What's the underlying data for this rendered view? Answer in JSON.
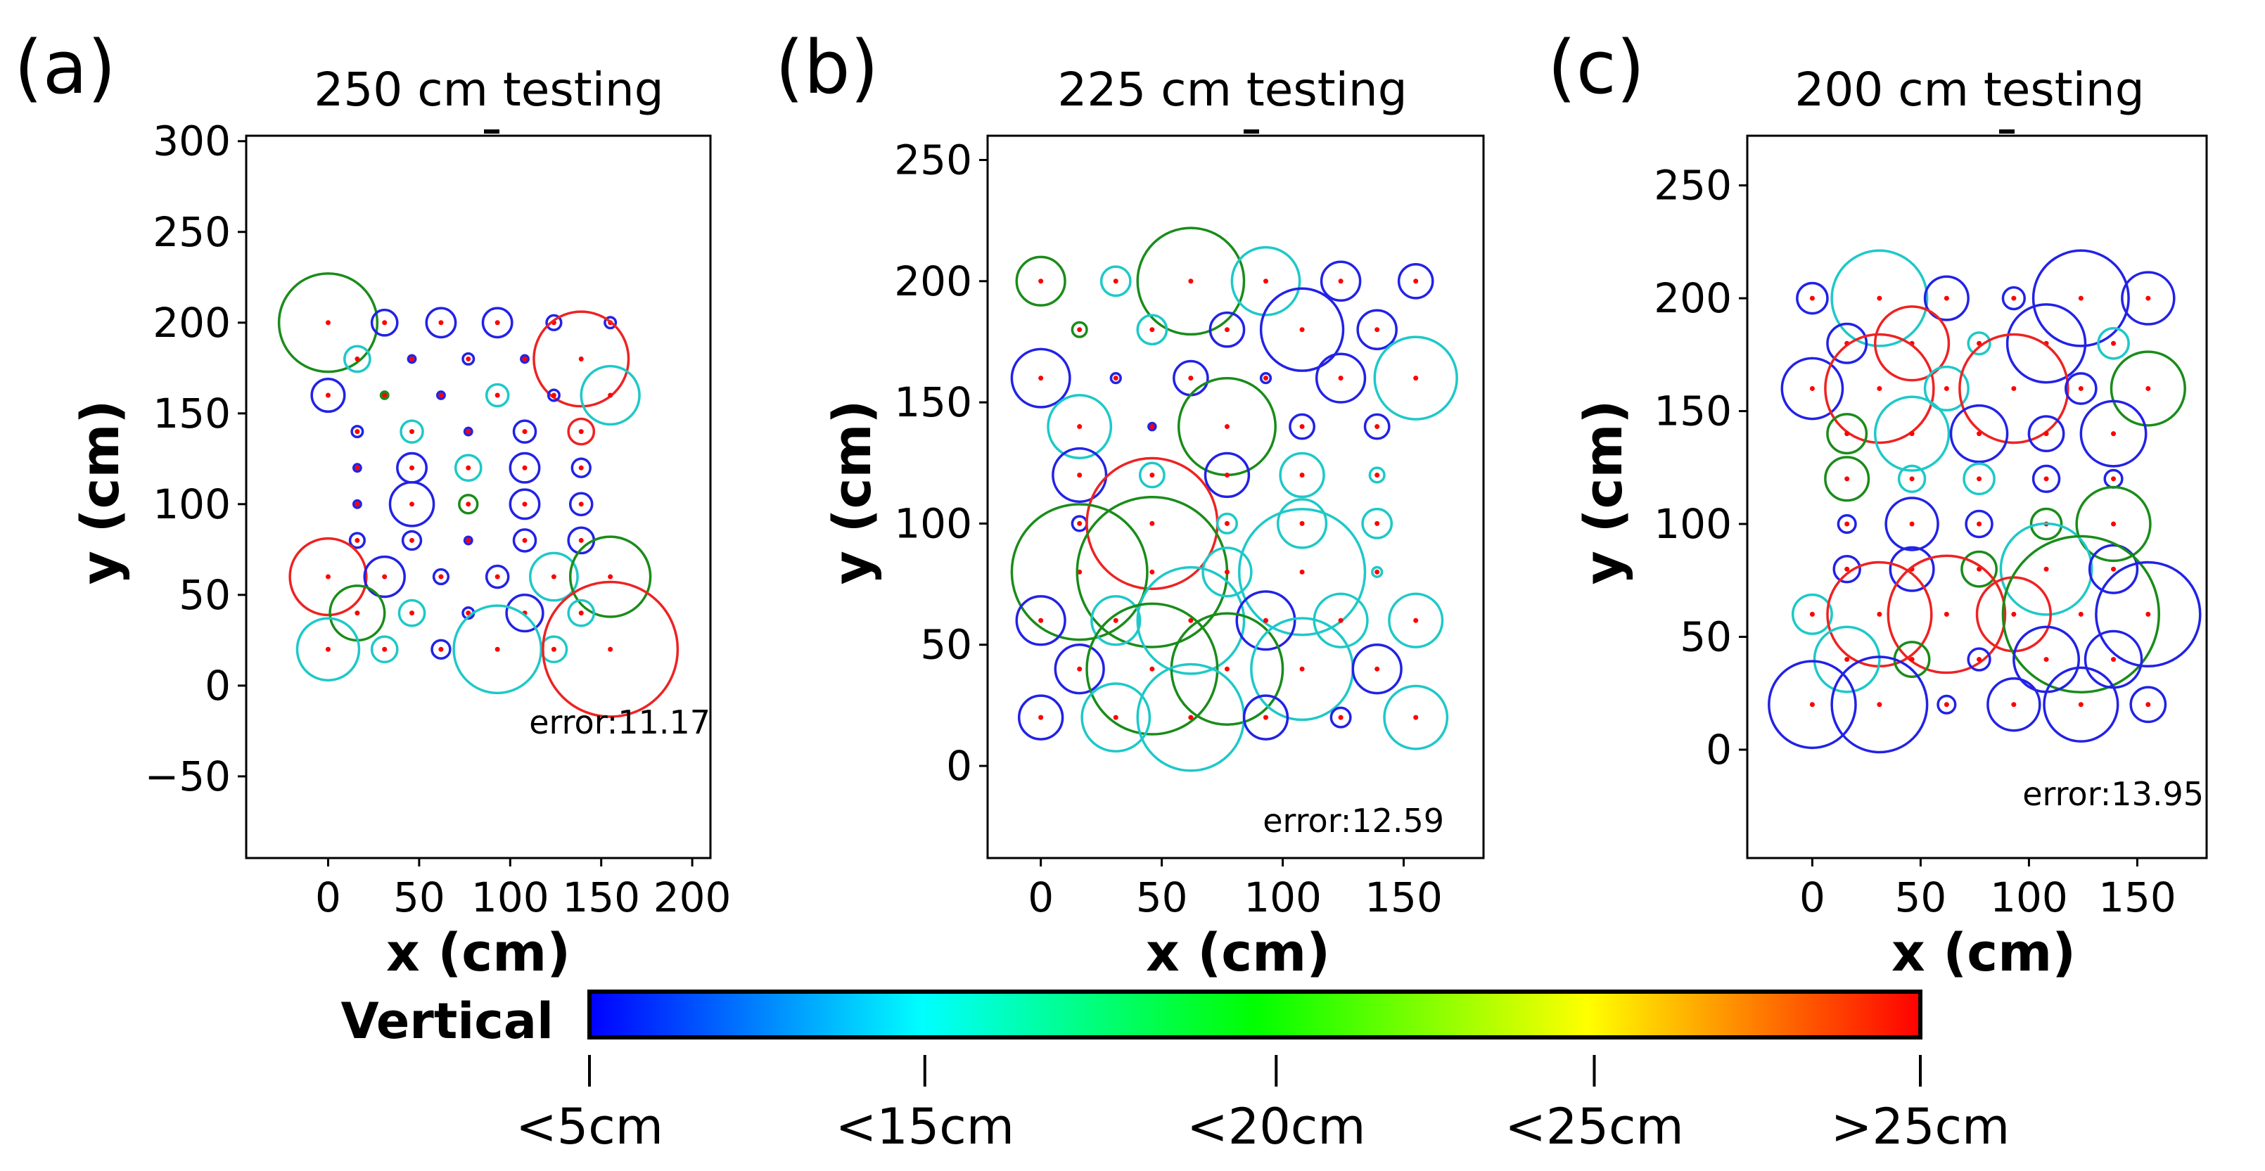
{
  "chart_data": [
    {
      "panel_label": "(a)",
      "title": "250 cm testing",
      "type": "scatter",
      "xlabel": "x (cm)",
      "ylabel": "y (cm)",
      "xlim": [
        -45,
        210
      ],
      "ylim": [
        -95,
        303
      ],
      "xticks": [
        0,
        50,
        100,
        150,
        200
      ],
      "xtick_labels": [
        "0",
        "50",
        "100",
        "150",
        "200"
      ],
      "yticks": [
        -50,
        0,
        50,
        100,
        150,
        200,
        250,
        300
      ],
      "ytick_labels": [
        "−50",
        "0",
        "50",
        "100",
        "150",
        "200",
        "250",
        "300"
      ],
      "error_text": "error:11.17",
      "points": [
        {
          "x": 0,
          "y": 200,
          "r": 27,
          "color": "green"
        },
        {
          "x": 31,
          "y": 200,
          "r": 7,
          "color": "blue"
        },
        {
          "x": 62,
          "y": 200,
          "r": 8,
          "color": "blue"
        },
        {
          "x": 93,
          "y": 200,
          "r": 8,
          "color": "blue"
        },
        {
          "x": 124,
          "y": 200,
          "r": 4,
          "color": "blue"
        },
        {
          "x": 155,
          "y": 200,
          "r": 3,
          "color": "blue"
        },
        {
          "x": 16,
          "y": 180,
          "r": 7,
          "color": "cyan"
        },
        {
          "x": 46,
          "y": 180,
          "r": 2,
          "color": "blue"
        },
        {
          "x": 77,
          "y": 180,
          "r": 3,
          "color": "blue"
        },
        {
          "x": 108,
          "y": 180,
          "r": 2,
          "color": "blue"
        },
        {
          "x": 139,
          "y": 180,
          "r": 26,
          "color": "red"
        },
        {
          "x": 0,
          "y": 160,
          "r": 9,
          "color": "blue"
        },
        {
          "x": 31,
          "y": 160,
          "r": 2,
          "color": "green"
        },
        {
          "x": 62,
          "y": 160,
          "r": 2,
          "color": "blue"
        },
        {
          "x": 93,
          "y": 160,
          "r": 6,
          "color": "cyan"
        },
        {
          "x": 124,
          "y": 160,
          "r": 3,
          "color": "blue"
        },
        {
          "x": 155,
          "y": 160,
          "r": 16,
          "color": "cyan"
        },
        {
          "x": 16,
          "y": 140,
          "r": 3,
          "color": "blue"
        },
        {
          "x": 46,
          "y": 140,
          "r": 6,
          "color": "cyan"
        },
        {
          "x": 77,
          "y": 140,
          "r": 2,
          "color": "blue"
        },
        {
          "x": 108,
          "y": 140,
          "r": 6,
          "color": "blue"
        },
        {
          "x": 139,
          "y": 140,
          "r": 7,
          "color": "red"
        },
        {
          "x": 16,
          "y": 120,
          "r": 2,
          "color": "blue"
        },
        {
          "x": 46,
          "y": 120,
          "r": 8,
          "color": "blue"
        },
        {
          "x": 77,
          "y": 120,
          "r": 7,
          "color": "cyan"
        },
        {
          "x": 108,
          "y": 120,
          "r": 8,
          "color": "blue"
        },
        {
          "x": 139,
          "y": 120,
          "r": 5,
          "color": "blue"
        },
        {
          "x": 16,
          "y": 100,
          "r": 2,
          "color": "blue"
        },
        {
          "x": 46,
          "y": 100,
          "r": 12,
          "color": "blue"
        },
        {
          "x": 77,
          "y": 100,
          "r": 5,
          "color": "green"
        },
        {
          "x": 108,
          "y": 100,
          "r": 8,
          "color": "blue"
        },
        {
          "x": 139,
          "y": 100,
          "r": 6,
          "color": "blue"
        },
        {
          "x": 16,
          "y": 80,
          "r": 4,
          "color": "blue"
        },
        {
          "x": 46,
          "y": 80,
          "r": 5,
          "color": "blue"
        },
        {
          "x": 77,
          "y": 80,
          "r": 2,
          "color": "blue"
        },
        {
          "x": 108,
          "y": 80,
          "r": 6,
          "color": "blue"
        },
        {
          "x": 139,
          "y": 80,
          "r": 7,
          "color": "blue"
        },
        {
          "x": 0,
          "y": 60,
          "r": 21,
          "color": "red"
        },
        {
          "x": 31,
          "y": 60,
          "r": 11,
          "color": "blue"
        },
        {
          "x": 62,
          "y": 60,
          "r": 4,
          "color": "blue"
        },
        {
          "x": 93,
          "y": 60,
          "r": 6,
          "color": "blue"
        },
        {
          "x": 124,
          "y": 60,
          "r": 13,
          "color": "cyan"
        },
        {
          "x": 155,
          "y": 60,
          "r": 22,
          "color": "green"
        },
        {
          "x": 16,
          "y": 40,
          "r": 15,
          "color": "green"
        },
        {
          "x": 46,
          "y": 40,
          "r": 7,
          "color": "cyan"
        },
        {
          "x": 77,
          "y": 40,
          "r": 3,
          "color": "blue"
        },
        {
          "x": 108,
          "y": 40,
          "r": 10,
          "color": "blue"
        },
        {
          "x": 139,
          "y": 40,
          "r": 7,
          "color": "cyan"
        },
        {
          "x": 0,
          "y": 20,
          "r": 17,
          "color": "cyan"
        },
        {
          "x": 31,
          "y": 20,
          "r": 7,
          "color": "cyan"
        },
        {
          "x": 62,
          "y": 20,
          "r": 5,
          "color": "blue"
        },
        {
          "x": 93,
          "y": 20,
          "r": 24,
          "color": "cyan"
        },
        {
          "x": 124,
          "y": 20,
          "r": 7,
          "color": "cyan"
        },
        {
          "x": 155,
          "y": 20,
          "r": 37,
          "color": "red"
        }
      ]
    },
    {
      "panel_label": "(b)",
      "title": "225 cm testing",
      "type": "scatter",
      "xlabel": "x (cm)",
      "ylabel": "y (cm)",
      "xlim": [
        -22,
        183
      ],
      "ylim": [
        -38,
        260
      ],
      "xticks": [
        0,
        50,
        100,
        150
      ],
      "xtick_labels": [
        "0",
        "50",
        "100",
        "150"
      ],
      "yticks": [
        0,
        50,
        100,
        150,
        200,
        250
      ],
      "ytick_labels": [
        "0",
        "50",
        "100",
        "150",
        "200",
        "250"
      ],
      "error_text": "error:12.59",
      "points": [
        {
          "x": 0,
          "y": 200,
          "r": 10,
          "color": "green"
        },
        {
          "x": 31,
          "y": 200,
          "r": 6,
          "color": "cyan"
        },
        {
          "x": 62,
          "y": 200,
          "r": 22,
          "color": "green"
        },
        {
          "x": 93,
          "y": 200,
          "r": 14,
          "color": "cyan"
        },
        {
          "x": 124,
          "y": 200,
          "r": 8,
          "color": "blue"
        },
        {
          "x": 155,
          "y": 200,
          "r": 7,
          "color": "blue"
        },
        {
          "x": 16,
          "y": 180,
          "r": 3,
          "color": "green"
        },
        {
          "x": 46,
          "y": 180,
          "r": 6,
          "color": "cyan"
        },
        {
          "x": 77,
          "y": 180,
          "r": 7,
          "color": "blue"
        },
        {
          "x": 108,
          "y": 180,
          "r": 17,
          "color": "blue"
        },
        {
          "x": 139,
          "y": 180,
          "r": 8,
          "color": "blue"
        },
        {
          "x": 0,
          "y": 160,
          "r": 12,
          "color": "blue"
        },
        {
          "x": 31,
          "y": 160,
          "r": 2,
          "color": "blue"
        },
        {
          "x": 62,
          "y": 160,
          "r": 7,
          "color": "blue"
        },
        {
          "x": 93,
          "y": 160,
          "r": 2,
          "color": "blue"
        },
        {
          "x": 124,
          "y": 160,
          "r": 10,
          "color": "blue"
        },
        {
          "x": 155,
          "y": 160,
          "r": 17,
          "color": "cyan"
        },
        {
          "x": 16,
          "y": 140,
          "r": 13,
          "color": "cyan"
        },
        {
          "x": 46,
          "y": 140,
          "r": 1,
          "color": "blue"
        },
        {
          "x": 77,
          "y": 140,
          "r": 20,
          "color": "green"
        },
        {
          "x": 108,
          "y": 140,
          "r": 5,
          "color": "blue"
        },
        {
          "x": 139,
          "y": 140,
          "r": 5,
          "color": "blue"
        },
        {
          "x": 16,
          "y": 120,
          "r": 11,
          "color": "blue"
        },
        {
          "x": 46,
          "y": 120,
          "r": 5,
          "color": "cyan"
        },
        {
          "x": 77,
          "y": 120,
          "r": 9,
          "color": "blue"
        },
        {
          "x": 108,
          "y": 120,
          "r": 9,
          "color": "cyan"
        },
        {
          "x": 139,
          "y": 120,
          "r": 3,
          "color": "cyan"
        },
        {
          "x": 16,
          "y": 100,
          "r": 3,
          "color": "blue"
        },
        {
          "x": 46,
          "y": 100,
          "r": 27,
          "color": "red"
        },
        {
          "x": 77,
          "y": 100,
          "r": 4,
          "color": "cyan"
        },
        {
          "x": 108,
          "y": 100,
          "r": 10,
          "color": "cyan"
        },
        {
          "x": 139,
          "y": 100,
          "r": 6,
          "color": "cyan"
        },
        {
          "x": 16,
          "y": 80,
          "r": 28,
          "color": "green"
        },
        {
          "x": 46,
          "y": 80,
          "r": 31,
          "color": "green"
        },
        {
          "x": 77,
          "y": 80,
          "r": 10,
          "color": "cyan"
        },
        {
          "x": 108,
          "y": 80,
          "r": 26,
          "color": "cyan"
        },
        {
          "x": 139,
          "y": 80,
          "r": 2,
          "color": "cyan"
        },
        {
          "x": 0,
          "y": 60,
          "r": 10,
          "color": "blue"
        },
        {
          "x": 31,
          "y": 60,
          "r": 10,
          "color": "cyan"
        },
        {
          "x": 62,
          "y": 60,
          "r": 22,
          "color": "cyan"
        },
        {
          "x": 93,
          "y": 60,
          "r": 12,
          "color": "blue"
        },
        {
          "x": 124,
          "y": 60,
          "r": 11,
          "color": "cyan"
        },
        {
          "x": 155,
          "y": 60,
          "r": 11,
          "color": "cyan"
        },
        {
          "x": 16,
          "y": 40,
          "r": 10,
          "color": "blue"
        },
        {
          "x": 46,
          "y": 40,
          "r": 27,
          "color": "green"
        },
        {
          "x": 77,
          "y": 40,
          "r": 23,
          "color": "green"
        },
        {
          "x": 108,
          "y": 40,
          "r": 21,
          "color": "cyan"
        },
        {
          "x": 139,
          "y": 40,
          "r": 10,
          "color": "blue"
        },
        {
          "x": 0,
          "y": 20,
          "r": 9,
          "color": "blue"
        },
        {
          "x": 31,
          "y": 20,
          "r": 14,
          "color": "cyan"
        },
        {
          "x": 62,
          "y": 20,
          "r": 22,
          "color": "cyan"
        },
        {
          "x": 93,
          "y": 20,
          "r": 9,
          "color": "blue"
        },
        {
          "x": 124,
          "y": 20,
          "r": 4,
          "color": "blue"
        },
        {
          "x": 155,
          "y": 20,
          "r": 13,
          "color": "cyan"
        }
      ]
    },
    {
      "panel_label": "(c)",
      "title": "200 cm testing",
      "type": "scatter",
      "xlabel": "x (cm)",
      "ylabel": "y (cm)",
      "xlim": [
        -30,
        182
      ],
      "ylim": [
        -48,
        272
      ],
      "xticks": [
        0,
        50,
        100,
        150
      ],
      "xtick_labels": [
        "0",
        "50",
        "100",
        "150"
      ],
      "yticks": [
        0,
        50,
        100,
        150,
        200,
        250
      ],
      "ytick_labels": [
        "0",
        "50",
        "100",
        "150",
        "200",
        "250"
      ],
      "error_text": "error:13.95",
      "points": [
        {
          "x": 0,
          "y": 200,
          "r": 7,
          "color": "blue"
        },
        {
          "x": 31,
          "y": 200,
          "r": 22,
          "color": "cyan"
        },
        {
          "x": 62,
          "y": 200,
          "r": 10,
          "color": "blue"
        },
        {
          "x": 93,
          "y": 200,
          "r": 5,
          "color": "blue"
        },
        {
          "x": 124,
          "y": 200,
          "r": 22,
          "color": "blue"
        },
        {
          "x": 155,
          "y": 200,
          "r": 12,
          "color": "blue"
        },
        {
          "x": 16,
          "y": 180,
          "r": 9,
          "color": "blue"
        },
        {
          "x": 46,
          "y": 180,
          "r": 17,
          "color": "red"
        },
        {
          "x": 77,
          "y": 180,
          "r": 5,
          "color": "cyan"
        },
        {
          "x": 108,
          "y": 180,
          "r": 18,
          "color": "blue"
        },
        {
          "x": 139,
          "y": 180,
          "r": 7,
          "color": "cyan"
        },
        {
          "x": 0,
          "y": 160,
          "r": 14,
          "color": "blue"
        },
        {
          "x": 31,
          "y": 160,
          "r": 25,
          "color": "red"
        },
        {
          "x": 62,
          "y": 160,
          "r": 10,
          "color": "cyan"
        },
        {
          "x": 93,
          "y": 160,
          "r": 25,
          "color": "red"
        },
        {
          "x": 124,
          "y": 160,
          "r": 7,
          "color": "blue"
        },
        {
          "x": 155,
          "y": 160,
          "r": 17,
          "color": "green"
        },
        {
          "x": 16,
          "y": 140,
          "r": 9,
          "color": "green"
        },
        {
          "x": 46,
          "y": 140,
          "r": 17,
          "color": "cyan"
        },
        {
          "x": 77,
          "y": 140,
          "r": 13,
          "color": "blue"
        },
        {
          "x": 108,
          "y": 140,
          "r": 8,
          "color": "blue"
        },
        {
          "x": 139,
          "y": 140,
          "r": 15,
          "color": "blue"
        },
        {
          "x": 16,
          "y": 120,
          "r": 10,
          "color": "green"
        },
        {
          "x": 46,
          "y": 120,
          "r": 6,
          "color": "cyan"
        },
        {
          "x": 77,
          "y": 120,
          "r": 7,
          "color": "cyan"
        },
        {
          "x": 108,
          "y": 120,
          "r": 6,
          "color": "blue"
        },
        {
          "x": 139,
          "y": 120,
          "r": 4,
          "color": "blue"
        },
        {
          "x": 16,
          "y": 100,
          "r": 4,
          "color": "blue"
        },
        {
          "x": 46,
          "y": 100,
          "r": 12,
          "color": "blue"
        },
        {
          "x": 77,
          "y": 100,
          "r": 6,
          "color": "blue"
        },
        {
          "x": 108,
          "y": 100,
          "r": 7,
          "color": "green"
        },
        {
          "x": 139,
          "y": 100,
          "r": 17,
          "color": "green"
        },
        {
          "x": 16,
          "y": 80,
          "r": 6,
          "color": "blue"
        },
        {
          "x": 46,
          "y": 80,
          "r": 10,
          "color": "blue"
        },
        {
          "x": 77,
          "y": 80,
          "r": 8,
          "color": "green"
        },
        {
          "x": 108,
          "y": 80,
          "r": 21,
          "color": "cyan"
        },
        {
          "x": 139,
          "y": 80,
          "r": 11,
          "color": "blue"
        },
        {
          "x": 0,
          "y": 60,
          "r": 9,
          "color": "cyan"
        },
        {
          "x": 31,
          "y": 60,
          "r": 24,
          "color": "red"
        },
        {
          "x": 62,
          "y": 60,
          "r": 27,
          "color": "red"
        },
        {
          "x": 93,
          "y": 60,
          "r": 17,
          "color": "red"
        },
        {
          "x": 124,
          "y": 60,
          "r": 36,
          "color": "green"
        },
        {
          "x": 155,
          "y": 60,
          "r": 24,
          "color": "blue"
        },
        {
          "x": 16,
          "y": 40,
          "r": 15,
          "color": "cyan"
        },
        {
          "x": 46,
          "y": 40,
          "r": 8,
          "color": "green"
        },
        {
          "x": 77,
          "y": 40,
          "r": 5,
          "color": "blue"
        },
        {
          "x": 108,
          "y": 40,
          "r": 15,
          "color": "blue"
        },
        {
          "x": 139,
          "y": 40,
          "r": 13,
          "color": "blue"
        },
        {
          "x": 0,
          "y": 20,
          "r": 20,
          "color": "blue"
        },
        {
          "x": 31,
          "y": 20,
          "r": 22,
          "color": "blue"
        },
        {
          "x": 62,
          "y": 20,
          "r": 4,
          "color": "blue"
        },
        {
          "x": 93,
          "y": 20,
          "r": 12,
          "color": "blue"
        },
        {
          "x": 124,
          "y": 20,
          "r": 17,
          "color": "blue"
        },
        {
          "x": 155,
          "y": 20,
          "r": 8,
          "color": "blue"
        }
      ]
    }
  ],
  "colorbar": {
    "label": "Vertical",
    "tick_labels": [
      "<5cm",
      "<15cm",
      "<20cm",
      "<25cm",
      ">25cm"
    ],
    "tick_fractions": [
      0,
      0.252,
      0.516,
      0.755,
      1
    ],
    "gradient_colors": [
      "#0000ff",
      "#00ffff",
      "#00ff00",
      "#ffff00",
      "#ff0000"
    ]
  },
  "colors": {
    "blue": "#2222e6",
    "cyan": "#1ec8c8",
    "green": "#1a8c1a",
    "red": "#ee2222",
    "dot": "#ff0000"
  }
}
